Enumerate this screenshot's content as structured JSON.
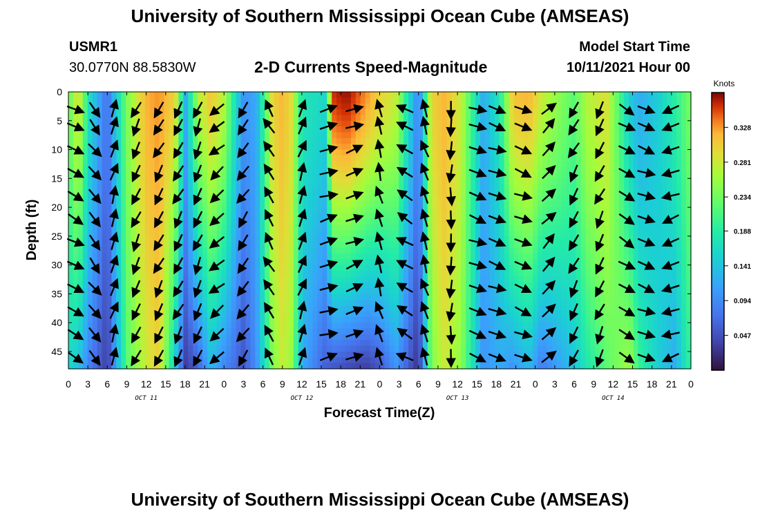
{
  "header": {
    "title": "University of Southern Mississippi Ocean Cube (AMSEAS)",
    "station": "USMR1",
    "coords": "30.0770N  88.5830W",
    "plot_title": "2-D Currents Speed-Magnitude",
    "model_label": "Model Start Time",
    "model_time": "10/11/2021 Hour 00"
  },
  "footer": {
    "title": "University of Southern Mississippi Ocean Cube (AMSEAS)"
  },
  "chart_data": {
    "type": "heatmap",
    "title": "2-D Currents Speed-Magnitude",
    "xlabel": "Forecast Time(Z)",
    "ylabel": "Depth (ft)",
    "x_range_hours": [
      0,
      96
    ],
    "y_range_ft": [
      0,
      48
    ],
    "x_ticks": [
      "0",
      "3",
      "6",
      "9",
      "12",
      "15",
      "18",
      "21",
      "0",
      "3",
      "6",
      "9",
      "12",
      "15",
      "18",
      "21",
      "0",
      "3",
      "6",
      "9",
      "12",
      "15",
      "18",
      "21",
      "0",
      "3",
      "6",
      "9",
      "12",
      "15",
      "18",
      "21",
      "0"
    ],
    "y_ticks": [
      "0",
      "5",
      "10",
      "15",
      "20",
      "25",
      "30",
      "35",
      "40",
      "45"
    ],
    "y_tick_values": [
      0,
      5,
      10,
      15,
      20,
      25,
      30,
      35,
      40,
      45
    ],
    "day_labels": [
      "OCT 11",
      "OCT 12",
      "OCT 13",
      "OCT 14"
    ],
    "day_label_hours": [
      12,
      36,
      60,
      84
    ],
    "colorbar": {
      "unit": "Knots",
      "ticks": [
        "0.328",
        "0.281",
        "0.234",
        "0.188",
        "0.141",
        "0.094",
        "0.047"
      ],
      "tick_values": [
        0.328,
        0.281,
        0.234,
        0.188,
        0.141,
        0.094,
        0.047
      ],
      "range": [
        0.0,
        0.375
      ]
    },
    "speed_columns": {
      "hours": [
        0,
        1.5,
        3,
        4.5,
        6,
        9,
        12,
        14,
        16.5,
        18,
        20,
        22,
        24,
        27,
        29,
        31.5,
        33,
        34.5,
        36,
        39.5,
        41,
        43,
        46,
        48,
        50.5,
        54,
        56,
        58,
        60.5,
        64,
        66.5,
        68.5,
        71,
        73,
        78,
        80,
        83,
        86.5,
        88,
        91,
        93.5,
        96
      ],
      "top": [
        0.22,
        0.3,
        0.18,
        0.12,
        0.07,
        0.24,
        0.32,
        0.33,
        0.3,
        0.12,
        0.27,
        0.31,
        0.27,
        0.1,
        0.12,
        0.3,
        0.32,
        0.29,
        0.18,
        0.16,
        0.36,
        0.37,
        0.33,
        0.3,
        0.28,
        0.08,
        0.3,
        0.32,
        0.28,
        0.12,
        0.18,
        0.31,
        0.32,
        0.28,
        0.22,
        0.27,
        0.29,
        0.15,
        0.12,
        0.15,
        0.19,
        0.24
      ],
      "bottom": [
        0.16,
        0.14,
        0.09,
        0.06,
        0.03,
        0.22,
        0.28,
        0.3,
        0.14,
        0.03,
        0.06,
        0.13,
        0.09,
        0.05,
        0.1,
        0.24,
        0.28,
        0.25,
        0.12,
        0.06,
        0.05,
        0.04,
        0.03,
        0.05,
        0.1,
        0.02,
        0.24,
        0.28,
        0.25,
        0.1,
        0.12,
        0.1,
        0.13,
        0.08,
        0.14,
        0.18,
        0.22,
        0.26,
        0.2,
        0.15,
        0.12,
        0.2
      ]
    },
    "vectors": {
      "hours": [
        1,
        4,
        7,
        10.5,
        14,
        17,
        20,
        23,
        27,
        31,
        36,
        40,
        44,
        48,
        52,
        55,
        59,
        63,
        66,
        70,
        74,
        78,
        82,
        86,
        89,
        93
      ],
      "depths": [
        3,
        6,
        10,
        14,
        18,
        22,
        26,
        30,
        34,
        38,
        42,
        46
      ],
      "angles_deg": [
        28,
        52,
        -72,
        115,
        118,
        118,
        112,
        140,
        125,
        -120,
        -70,
        -15,
        -20,
        255,
        210,
        252,
        92,
        20,
        20,
        22,
        -45,
        118,
        115,
        30,
        20,
        160
      ]
    }
  }
}
